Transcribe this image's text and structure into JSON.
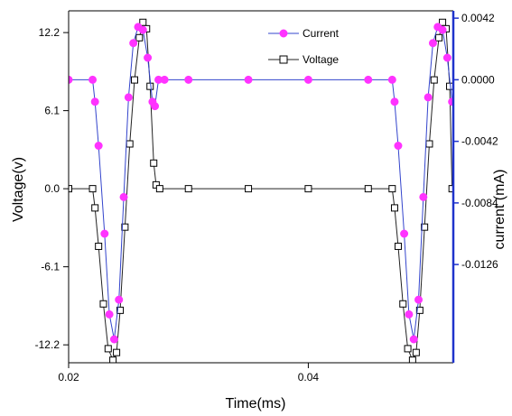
{
  "chart_data": {
    "type": "line",
    "xlabel": "Time(ms)",
    "ylabel_left": "Voltage(v)",
    "ylabel_right": "current (mA)",
    "xlim": [
      0.02,
      0.0521
    ],
    "ylim_left": [
      -136,
      139
    ],
    "ylim_right": [
      -0.0193,
      0.0047
    ],
    "x_ticks": [
      0.02,
      0.04
    ],
    "x_tick_labels": [
      "0.02",
      "0.04"
    ],
    "y_left_ticks": [
      12.2,
      6.1,
      0.0,
      -6.1,
      -12.2
    ],
    "y_left_tick_labels": [
      "12.2",
      "6.1",
      "0.0",
      "-6.1",
      "-12.2"
    ],
    "y_right_ticks": [
      0.0042,
      0.0,
      -0.0042,
      -0.0084,
      -0.0126
    ],
    "y_right_tick_labels": [
      "0.0042",
      "0.0000",
      "-0.0042",
      "-0.0084",
      "-0.0126"
    ],
    "legend_position": "top-center",
    "series": [
      {
        "name": "Current",
        "axis": "right",
        "color": "#ff33ff",
        "line_color": "#3344cc",
        "marker": "filled-circle",
        "x": [
          0.02,
          0.022,
          0.0222,
          0.0225,
          0.023,
          0.0234,
          0.0238,
          0.0242,
          0.0246,
          0.025,
          0.0254,
          0.0258,
          0.0262,
          0.0266,
          0.027,
          0.0272,
          0.0275,
          0.028,
          0.03,
          0.035,
          0.04,
          0.045,
          0.047,
          0.0472,
          0.0475,
          0.048,
          0.0484,
          0.0488,
          0.0492,
          0.0496,
          0.05,
          0.0504,
          0.0508,
          0.0512,
          0.0516,
          0.052
        ],
        "y": [
          0.0,
          0.0,
          -0.0015,
          -0.0045,
          -0.0105,
          -0.016,
          -0.0177,
          -0.015,
          -0.008,
          -0.0012,
          0.0025,
          0.0036,
          0.0034,
          0.0015,
          -0.0015,
          -0.0018,
          0.0,
          0.0,
          0.0,
          0.0,
          0.0,
          0.0,
          0.0,
          -0.0015,
          -0.0045,
          -0.0105,
          -0.016,
          -0.0177,
          -0.015,
          -0.008,
          -0.0012,
          0.0025,
          0.0036,
          0.0034,
          0.0015,
          -0.0015
        ]
      },
      {
        "name": "Voltage",
        "axis": "left",
        "color": "#000000",
        "line_color": "#222222",
        "marker": "open-square",
        "x": [
          0.02,
          0.022,
          0.0222,
          0.0225,
          0.0229,
          0.0233,
          0.0237,
          0.024,
          0.0243,
          0.0247,
          0.0251,
          0.0255,
          0.0259,
          0.0262,
          0.0265,
          0.0268,
          0.0271,
          0.0273,
          0.0276,
          0.03,
          0.035,
          0.04,
          0.045,
          0.047,
          0.0472,
          0.0475,
          0.0479,
          0.0483,
          0.0487,
          0.049,
          0.0493,
          0.0497,
          0.0501,
          0.0505,
          0.0509,
          0.0512,
          0.0515,
          0.0518,
          0.052
        ],
        "y": [
          0.0,
          0.0,
          -1.5,
          -4.5,
          -9.0,
          -12.5,
          -13.4,
          -12.8,
          -9.5,
          -3.0,
          3.5,
          8.5,
          11.8,
          13.0,
          12.5,
          8.0,
          2.0,
          0.3,
          0.0,
          0.0,
          0.0,
          0.0,
          0.0,
          0.0,
          -1.5,
          -4.5,
          -9.0,
          -12.5,
          -13.4,
          -12.8,
          -9.5,
          -3.0,
          3.5,
          8.5,
          11.8,
          13.0,
          12.5,
          8.0,
          0.0
        ]
      }
    ]
  }
}
